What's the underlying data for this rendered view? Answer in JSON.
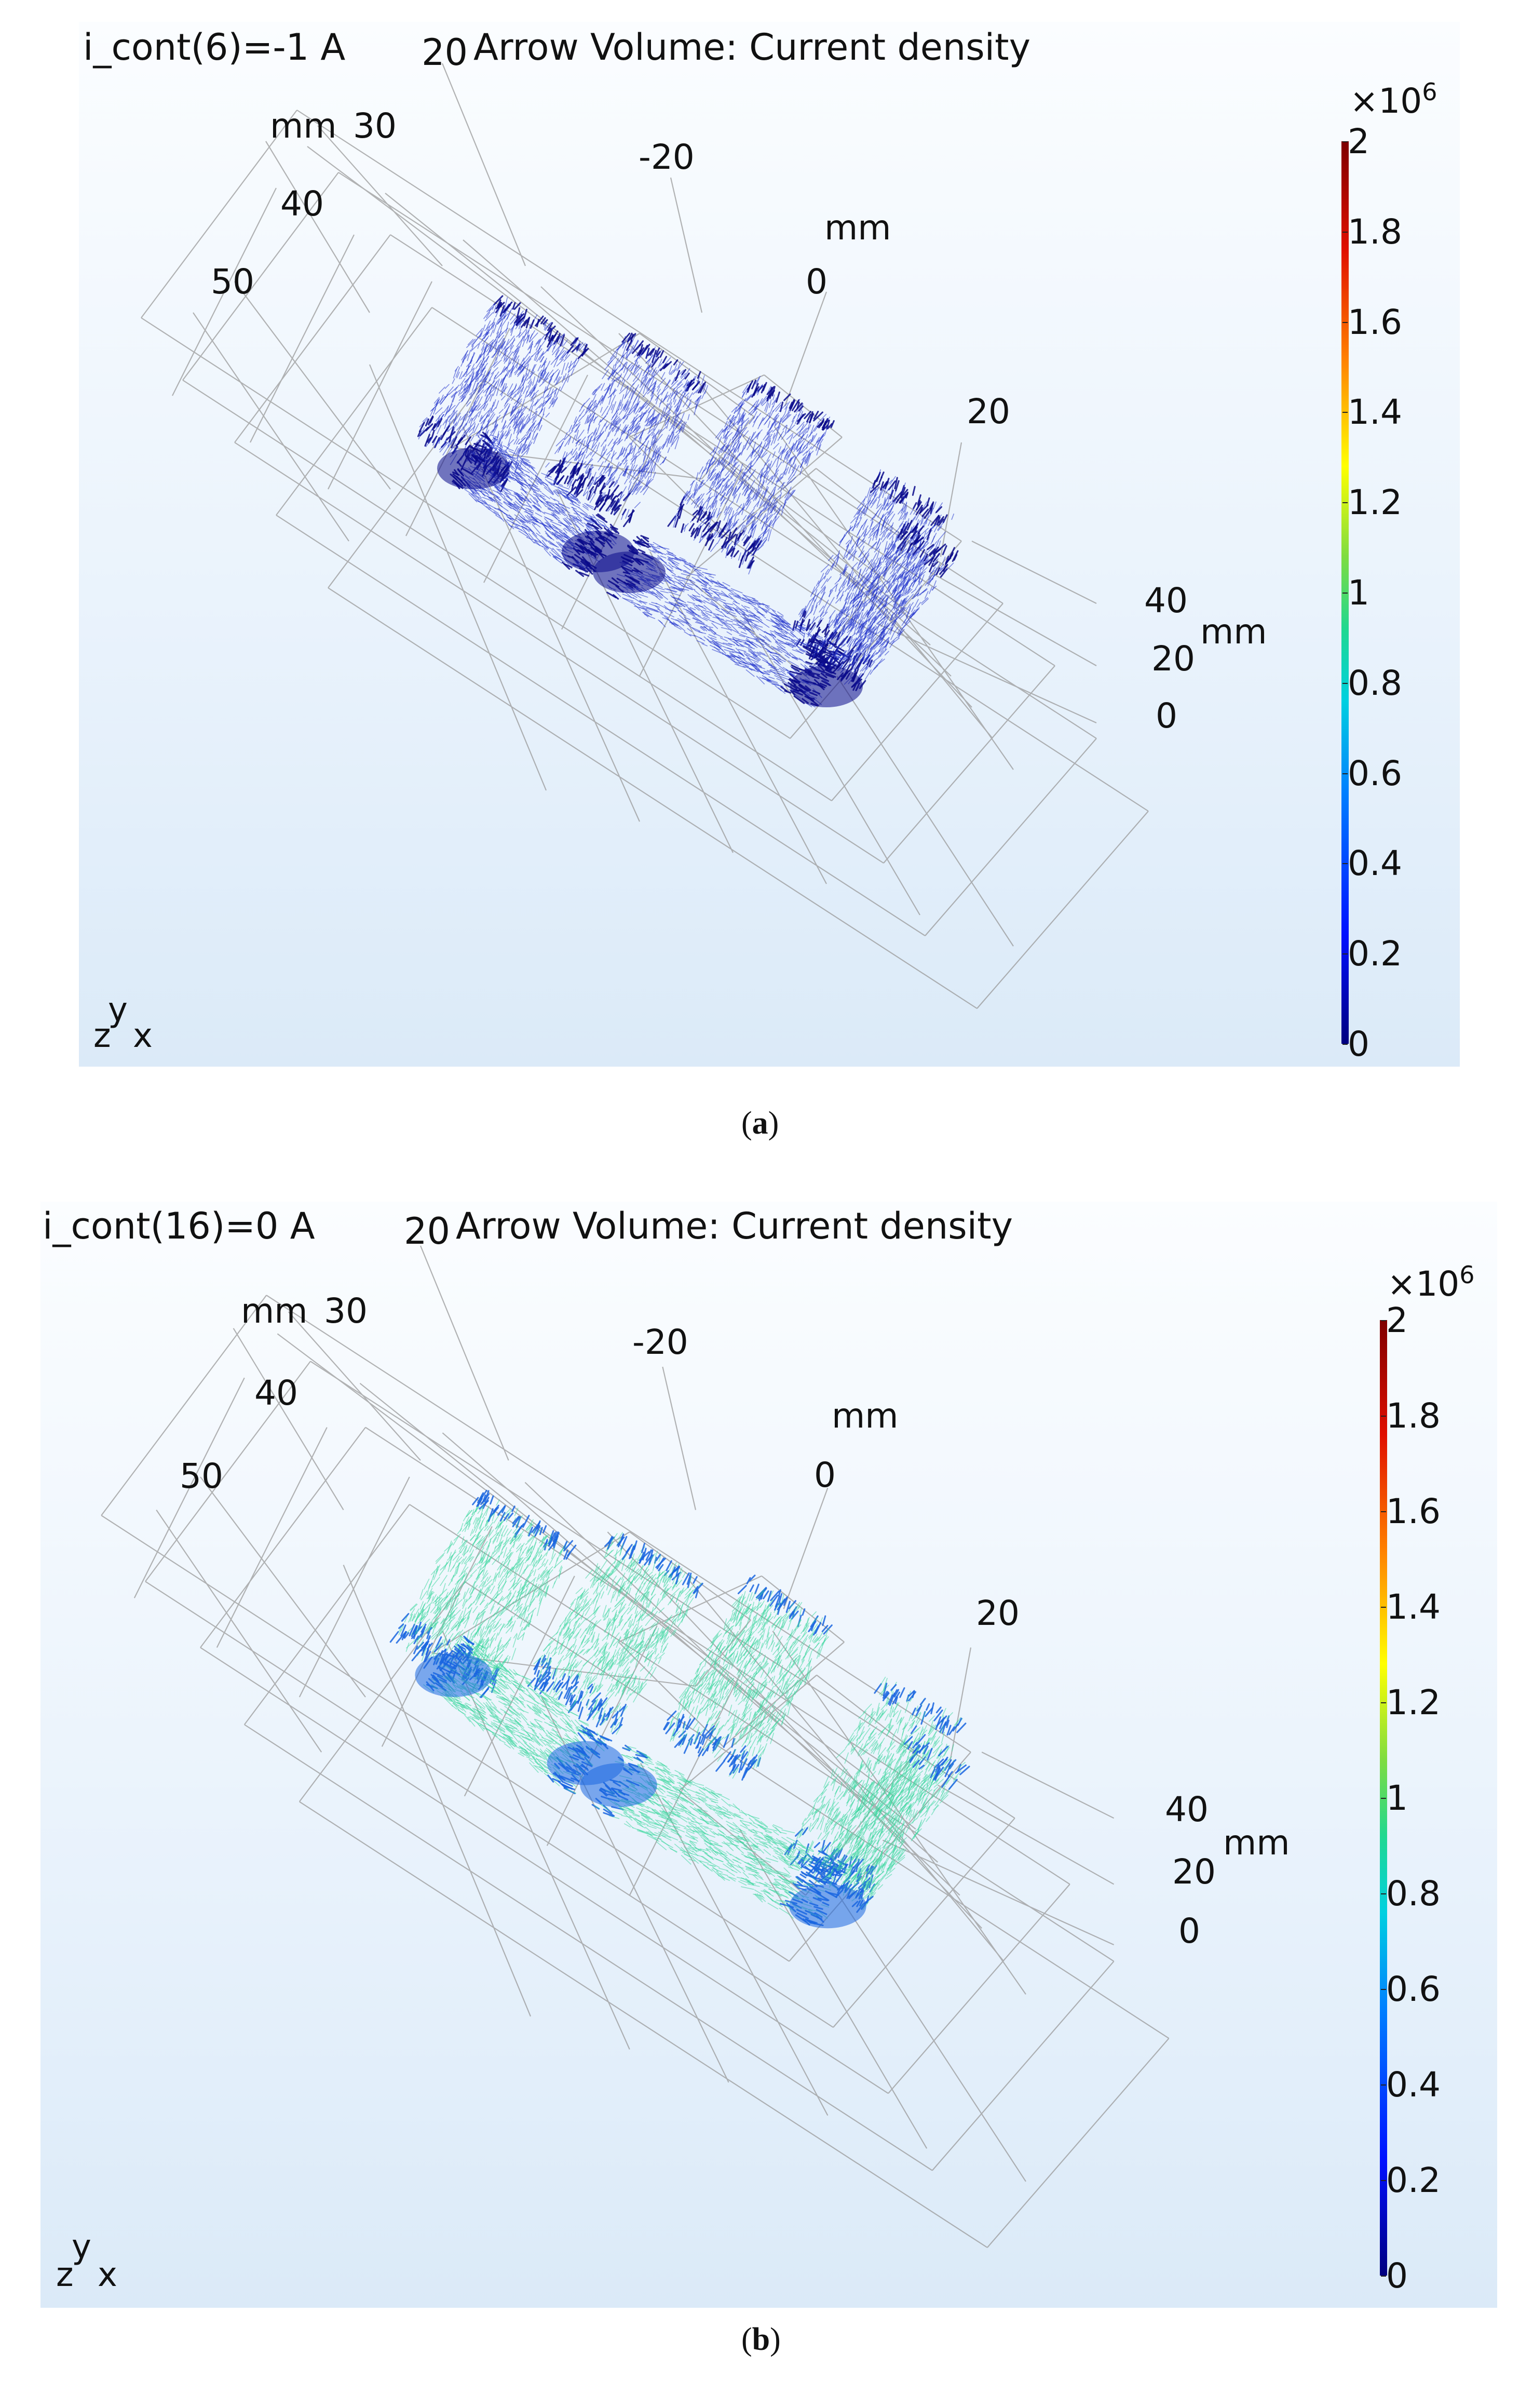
{
  "panels": [
    {
      "id": "a",
      "header_left": "i_cont(6)=-1 A",
      "header_title_prefix": "20",
      "header_title": "Arrow Volume: Current density",
      "axis_ticks": {
        "left_mm": "mm",
        "left_30": "30",
        "left_40": "40",
        "left_50": "50",
        "top_m20": "-20",
        "top_mm": "mm",
        "top_0": "0",
        "top_20": "20",
        "right_40": "40",
        "right_20": "20",
        "right_mm": "mm",
        "right_0": "0"
      },
      "colorbar": {
        "multiplier": "×10",
        "exponent": "6",
        "labels": [
          "2",
          "1.8",
          "1.6",
          "1.4",
          "1.2",
          "1",
          "0.8",
          "0.6",
          "0.4",
          "0.2",
          "0"
        ]
      },
      "triad": {
        "y": "y",
        "z": "z",
        "x": "x"
      },
      "caption_letter": "a",
      "arrow_level": 0.2,
      "arrow_color": "#2233cc",
      "arrow_color_dense": "#0a0a8a"
    },
    {
      "id": "b",
      "header_left": "i_cont(16)=0 A",
      "header_title_prefix": "20",
      "header_title": "Arrow Volume: Current density",
      "axis_ticks": {
        "left_mm": "mm",
        "left_30": "30",
        "left_40": "40",
        "left_50": "50",
        "top_m20": "-20",
        "top_mm": "mm",
        "top_0": "0",
        "top_20": "20",
        "right_40": "40",
        "right_20": "20",
        "right_mm": "mm",
        "right_0": "0"
      },
      "colorbar": {
        "multiplier": "×10",
        "exponent": "6",
        "labels": [
          "2",
          "1.8",
          "1.6",
          "1.4",
          "1.2",
          "1",
          "0.8",
          "0.6",
          "0.4",
          "0.2",
          "0"
        ]
      },
      "triad": {
        "y": "y",
        "z": "z",
        "x": "x"
      },
      "caption_letter": "b",
      "arrow_level": 0.8,
      "arrow_color": "#3ed8a0",
      "arrow_color_dense": "#1a66e0"
    }
  ],
  "colors": {
    "wireframe": "#9a9a9a",
    "colorbar_top": "#7f0000",
    "colorbar_bottom": "#00007f"
  }
}
